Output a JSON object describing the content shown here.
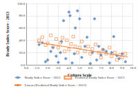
{
  "chart_data": {
    "type": "scatter",
    "x_label": "Culture Scale",
    "y_label": "Brady Index Score - 2013",
    "xlim": [
      0,
      10
    ],
    "xticks": [
      {
        "value": 0,
        "label": "0.0"
      },
      {
        "value": 1,
        "label": "1.0"
      },
      {
        "value": 2,
        "label": "2.0"
      },
      {
        "value": 3,
        "label": "3.0"
      },
      {
        "value": 4,
        "label": "4.0"
      },
      {
        "value": 5,
        "label": "5.0"
      },
      {
        "value": 6,
        "label": "6.0"
      },
      {
        "value": 7,
        "label": "7.0"
      },
      {
        "value": 8,
        "label": "8.0"
      },
      {
        "value": 9,
        "label": "9.0"
      },
      {
        "value": 10,
        "label": "10.0"
      }
    ],
    "ylim": [
      0,
      100
    ],
    "yticks": [
      {
        "value": 0,
        "label": "0.0"
      },
      {
        "value": 20,
        "label": "20.0"
      },
      {
        "value": 40,
        "label": "40.0"
      },
      {
        "value": 60,
        "label": "60.0"
      },
      {
        "value": 80,
        "label": "80.0"
      },
      {
        "value": 100,
        "label": "100.0"
      }
    ],
    "grid": true,
    "legend": "bottom",
    "series": [
      {
        "name": "Brady Index Score - 2013",
        "type": "scatter",
        "color": "#4f81bd",
        "marker": "diamond",
        "x": [
          1.2,
          1.5,
          1.8,
          2.0,
          2.3,
          2.5,
          2.8,
          3.0,
          3.2,
          3.3,
          3.5,
          3.7,
          4.0,
          4.1,
          4.3,
          4.5,
          4.6,
          4.8,
          5.0,
          5.2,
          5.5,
          5.7,
          6.0,
          6.2,
          6.4,
          6.6,
          6.8,
          7.0,
          7.2,
          7.5,
          7.8,
          8.0,
          8.2,
          8.5,
          8.7,
          9.0,
          9.3
        ],
        "values": [
          33,
          36,
          5,
          8,
          22,
          28,
          14,
          4,
          20,
          38,
          72,
          10,
          86,
          80,
          3,
          18,
          60,
          88,
          75,
          12,
          30,
          45,
          2,
          20,
          75,
          8,
          30,
          16,
          25,
          22,
          3,
          20,
          46,
          15,
          10,
          18,
          5
        ]
      },
      {
        "name": "Predicted Brady Index Score - 2013",
        "type": "scatter",
        "color": "#ed7d31",
        "marker": "open_square",
        "x": [
          1.2,
          1.5,
          1.8,
          2.0,
          2.3,
          2.5,
          2.8,
          3.0,
          3.2,
          3.4,
          3.6,
          3.8,
          4.0,
          4.2,
          4.4,
          4.6,
          4.8,
          5.0,
          5.2,
          5.5,
          5.8,
          6.0,
          6.2,
          6.5,
          6.8,
          7.0,
          7.2,
          7.5,
          7.8,
          8.0,
          8.3,
          8.5,
          8.8,
          9.0,
          9.3
        ],
        "values": [
          40,
          45,
          32,
          35,
          48,
          30,
          42,
          28,
          36,
          44,
          22,
          40,
          25,
          34,
          46,
          30,
          20,
          28,
          38,
          22,
          30,
          18,
          26,
          33,
          20,
          12,
          24,
          18,
          28,
          14,
          20,
          8,
          16,
          12,
          18
        ]
      },
      {
        "name": "Linear (Predicted Brady Index Score - 2013)",
        "type": "line",
        "color": "#ed7d31",
        "line_style": "solid",
        "x": [
          1.0,
          9.5
        ],
        "values": [
          37,
          13
        ]
      }
    ]
  }
}
